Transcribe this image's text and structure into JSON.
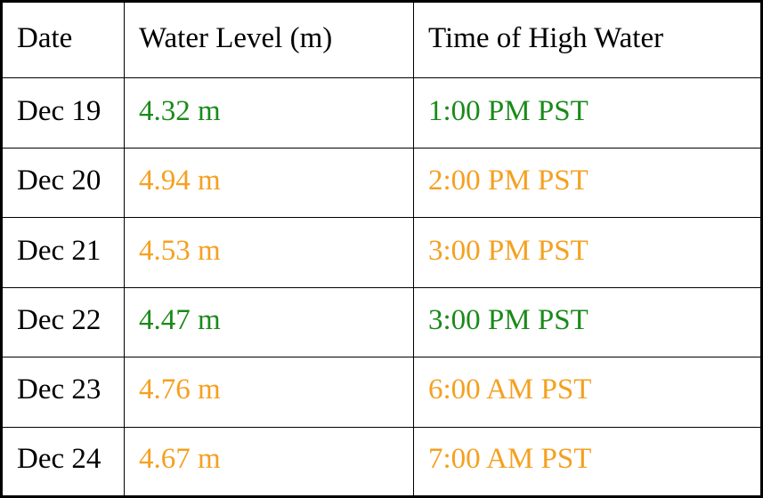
{
  "table": {
    "header": [
      "Date",
      "Water Level (m)",
      "Time of High Water"
    ],
    "rows": [
      [
        "Dec 19",
        "4.32 m",
        "1:00 PM PST"
      ],
      [
        "Dec 20",
        "4.94 m",
        "2:00 PM PST"
      ],
      [
        "Dec 21",
        "4.53 m",
        "3:00 PM PST"
      ],
      [
        "Dec 22",
        "4.47 m",
        "3:00 PM PST"
      ],
      [
        "Dec 23",
        "4.76 m",
        "6:00 AM PST"
      ],
      [
        "Dec 24",
        "4.67 m",
        "7:00 AM PST"
      ]
    ],
    "row_colors": [
      "#1a8a1a",
      "#f5a020",
      "#f5a020",
      "#1a8a1a",
      "#f5a020",
      "#f5a020"
    ]
  }
}
